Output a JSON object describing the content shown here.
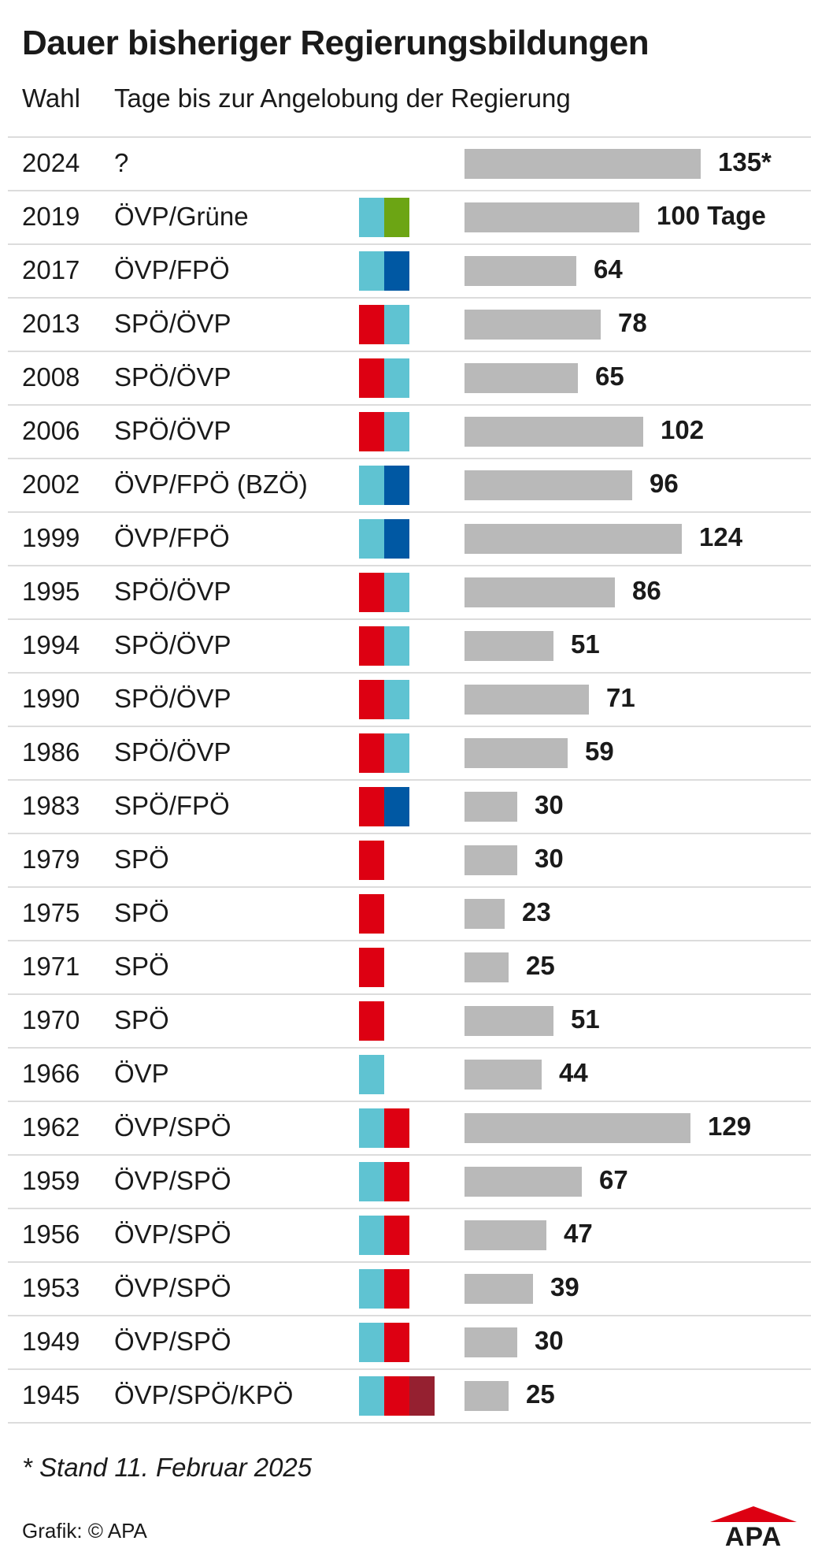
{
  "header": {
    "title": "Dauer bisheriger Regierungsbildungen",
    "col_year": "Wahl",
    "col_days": "Tage bis zur Angelobung der Regierung"
  },
  "colors": {
    "ÖVP": "#5fc3d2",
    "SPÖ": "#dd0012",
    "FPÖ": "#0058a3",
    "Grüne": "#6ca514",
    "KPÖ": "#952030",
    "bar": "#b9b9b9"
  },
  "chart_data": {
    "type": "bar",
    "orientation": "horizontal",
    "title": "Dauer bisheriger Regierungsbildungen",
    "xlabel": "Tage bis zur Angelobung der Regierung",
    "ylabel": "Wahl",
    "xlim": [
      0,
      135
    ],
    "grid": false,
    "rows": [
      {
        "year": "2024",
        "coalition": "?",
        "parties": [],
        "value": 135,
        "label": "135*"
      },
      {
        "year": "2019",
        "coalition": "ÖVP/Grüne",
        "parties": [
          "ÖVP",
          "Grüne"
        ],
        "value": 100,
        "label": "100 Tage"
      },
      {
        "year": "2017",
        "coalition": "ÖVP/FPÖ",
        "parties": [
          "ÖVP",
          "FPÖ"
        ],
        "value": 64,
        "label": "64"
      },
      {
        "year": "2013",
        "coalition": "SPÖ/ÖVP",
        "parties": [
          "SPÖ",
          "ÖVP"
        ],
        "value": 78,
        "label": "78"
      },
      {
        "year": "2008",
        "coalition": "SPÖ/ÖVP",
        "parties": [
          "SPÖ",
          "ÖVP"
        ],
        "value": 65,
        "label": "65"
      },
      {
        "year": "2006",
        "coalition": "SPÖ/ÖVP",
        "parties": [
          "SPÖ",
          "ÖVP"
        ],
        "value": 102,
        "label": "102"
      },
      {
        "year": "2002",
        "coalition": "ÖVP/FPÖ (BZÖ)",
        "parties": [
          "ÖVP",
          "FPÖ"
        ],
        "value": 96,
        "label": "96"
      },
      {
        "year": "1999",
        "coalition": "ÖVP/FPÖ",
        "parties": [
          "ÖVP",
          "FPÖ"
        ],
        "value": 124,
        "label": "124"
      },
      {
        "year": "1995",
        "coalition": "SPÖ/ÖVP",
        "parties": [
          "SPÖ",
          "ÖVP"
        ],
        "value": 86,
        "label": "86"
      },
      {
        "year": "1994",
        "coalition": "SPÖ/ÖVP",
        "parties": [
          "SPÖ",
          "ÖVP"
        ],
        "value": 51,
        "label": "51"
      },
      {
        "year": "1990",
        "coalition": "SPÖ/ÖVP",
        "parties": [
          "SPÖ",
          "ÖVP"
        ],
        "value": 71,
        "label": "71"
      },
      {
        "year": "1986",
        "coalition": "SPÖ/ÖVP",
        "parties": [
          "SPÖ",
          "ÖVP"
        ],
        "value": 59,
        "label": "59"
      },
      {
        "year": "1983",
        "coalition": "SPÖ/FPÖ",
        "parties": [
          "SPÖ",
          "FPÖ"
        ],
        "value": 30,
        "label": "30"
      },
      {
        "year": "1979",
        "coalition": "SPÖ",
        "parties": [
          "SPÖ"
        ],
        "value": 30,
        "label": "30"
      },
      {
        "year": "1975",
        "coalition": "SPÖ",
        "parties": [
          "SPÖ"
        ],
        "value": 23,
        "label": "23"
      },
      {
        "year": "1971",
        "coalition": "SPÖ",
        "parties": [
          "SPÖ"
        ],
        "value": 25,
        "label": "25"
      },
      {
        "year": "1970",
        "coalition": "SPÖ",
        "parties": [
          "SPÖ"
        ],
        "value": 51,
        "label": "51"
      },
      {
        "year": "1966",
        "coalition": "ÖVP",
        "parties": [
          "ÖVP"
        ],
        "value": 44,
        "label": "44"
      },
      {
        "year": "1962",
        "coalition": "ÖVP/SPÖ",
        "parties": [
          "ÖVP",
          "SPÖ"
        ],
        "value": 129,
        "label": "129"
      },
      {
        "year": "1959",
        "coalition": "ÖVP/SPÖ",
        "parties": [
          "ÖVP",
          "SPÖ"
        ],
        "value": 67,
        "label": "67"
      },
      {
        "year": "1956",
        "coalition": "ÖVP/SPÖ",
        "parties": [
          "ÖVP",
          "SPÖ"
        ],
        "value": 47,
        "label": "47"
      },
      {
        "year": "1953",
        "coalition": "ÖVP/SPÖ",
        "parties": [
          "ÖVP",
          "SPÖ"
        ],
        "value": 39,
        "label": "39"
      },
      {
        "year": "1949",
        "coalition": "ÖVP/SPÖ",
        "parties": [
          "ÖVP",
          "SPÖ"
        ],
        "value": 30,
        "label": "30"
      },
      {
        "year": "1945",
        "coalition": "ÖVP/SPÖ/KPÖ",
        "parties": [
          "ÖVP",
          "SPÖ",
          "KPÖ"
        ],
        "value": 25,
        "label": "25"
      }
    ]
  },
  "footer": {
    "footnote": "* Stand 11. Februar 2025",
    "credit": "Grafik: © APA",
    "logo_text": "APA"
  }
}
